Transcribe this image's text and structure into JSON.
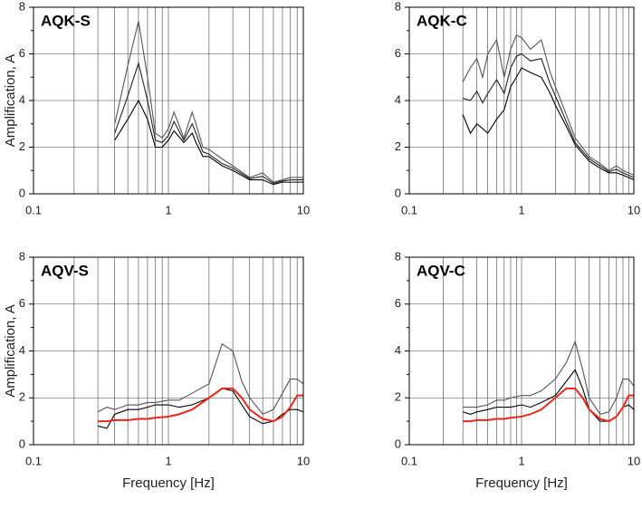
{
  "chart_data": [
    {
      "type": "line",
      "title": "AQK-S",
      "y_label": "Amplification, A",
      "log_x": true,
      "grid": true,
      "xlim": [
        0.1,
        10
      ],
      "xticks": [
        0.1,
        1,
        10
      ],
      "ylim": [
        0,
        8
      ],
      "yticks": [
        0,
        2,
        4,
        6,
        8
      ],
      "x": [
        0.4,
        0.5,
        0.6,
        0.7,
        0.8,
        0.9,
        1,
        1.1,
        1.3,
        1.5,
        1.6,
        1.8,
        2,
        2.5,
        3,
        4,
        5,
        6,
        7,
        8,
        10
      ],
      "series": [
        {
          "color": "#555555",
          "values": [
            3.0,
            5.5,
            7.4,
            5.0,
            2.6,
            2.4,
            2.8,
            3.5,
            2.4,
            3.5,
            3.0,
            2.0,
            1.9,
            1.5,
            1.2,
            0.7,
            0.9,
            0.5,
            0.6,
            0.7,
            0.7
          ]
        },
        {
          "color": "#222222",
          "values": [
            2.6,
            4.2,
            5.6,
            4.0,
            2.3,
            2.2,
            2.5,
            3.1,
            2.3,
            3.0,
            2.6,
            1.8,
            1.7,
            1.3,
            1.1,
            0.65,
            0.75,
            0.45,
            0.55,
            0.6,
            0.6
          ]
        },
        {
          "color": "#000000",
          "values": [
            2.3,
            3.2,
            4.0,
            3.2,
            2.0,
            2.0,
            2.3,
            2.7,
            2.2,
            2.6,
            2.2,
            1.6,
            1.6,
            1.2,
            1.0,
            0.6,
            0.6,
            0.4,
            0.5,
            0.5,
            0.5
          ]
        }
      ]
    },
    {
      "type": "line",
      "title": "AQK-C",
      "log_x": true,
      "grid": true,
      "xlim": [
        0.1,
        10
      ],
      "xticks": [
        0.1,
        1,
        10
      ],
      "ylim": [
        0,
        8
      ],
      "yticks": [
        0,
        2,
        4,
        6,
        8
      ],
      "x": [
        0.3,
        0.35,
        0.4,
        0.45,
        0.5,
        0.6,
        0.7,
        0.8,
        0.9,
        1,
        1.2,
        1.5,
        1.8,
        2,
        2.5,
        3,
        4,
        5,
        6,
        7,
        8,
        10
      ],
      "series": [
        {
          "color": "#555555",
          "values": [
            4.8,
            5.4,
            5.8,
            5.0,
            6.0,
            6.6,
            5.0,
            6.2,
            6.8,
            6.7,
            6.2,
            6.6,
            5.2,
            4.6,
            3.4,
            2.4,
            1.6,
            1.3,
            1.0,
            1.2,
            1.0,
            0.8
          ]
        },
        {
          "color": "#222222",
          "values": [
            4.1,
            4.0,
            4.4,
            3.9,
            4.3,
            4.9,
            4.3,
            5.4,
            5.9,
            6.0,
            5.7,
            5.8,
            4.7,
            4.2,
            3.1,
            2.2,
            1.5,
            1.2,
            0.95,
            1.05,
            0.9,
            0.7
          ]
        },
        {
          "color": "#000000",
          "values": [
            3.4,
            2.6,
            3.0,
            2.8,
            2.6,
            3.2,
            3.6,
            4.6,
            5.0,
            5.4,
            5.2,
            5.0,
            4.3,
            3.8,
            2.9,
            2.1,
            1.4,
            1.1,
            0.9,
            0.9,
            0.8,
            0.6
          ]
        }
      ]
    },
    {
      "type": "line",
      "title": "AQV-S",
      "y_label": "Amplification, A",
      "x_label": "Frequency [Hz]",
      "log_x": true,
      "grid": true,
      "xlim": [
        0.1,
        10
      ],
      "xticks": [
        0.1,
        1,
        10
      ],
      "ylim": [
        0,
        8
      ],
      "yticks": [
        0,
        2,
        4,
        6,
        8
      ],
      "x": [
        0.3,
        0.35,
        0.4,
        0.5,
        0.6,
        0.7,
        0.8,
        1,
        1.2,
        1.5,
        2,
        2.5,
        3,
        3.5,
        4,
        5,
        6,
        7,
        8,
        9,
        10
      ],
      "series": [
        {
          "color": "#555555",
          "values": [
            1.4,
            1.6,
            1.5,
            1.7,
            1.7,
            1.8,
            1.8,
            1.9,
            1.9,
            2.2,
            2.6,
            4.3,
            4.0,
            2.7,
            2.0,
            1.3,
            1.5,
            2.2,
            2.8,
            2.8,
            2.6
          ]
        },
        {
          "color": "#000000",
          "values": [
            0.8,
            0.7,
            1.3,
            1.5,
            1.5,
            1.6,
            1.7,
            1.7,
            1.6,
            1.7,
            2.0,
            2.4,
            2.3,
            1.7,
            1.2,
            0.9,
            1.0,
            1.3,
            1.5,
            1.5,
            1.4
          ]
        },
        {
          "color": "#e8281e",
          "values": [
            1.0,
            1.0,
            1.05,
            1.05,
            1.1,
            1.1,
            1.15,
            1.2,
            1.3,
            1.5,
            2.0,
            2.4,
            2.4,
            2.0,
            1.5,
            1.1,
            1.0,
            1.2,
            1.6,
            2.1,
            2.1
          ]
        }
      ]
    },
    {
      "type": "line",
      "title": "AQV-C",
      "x_label": "Frequency [Hz]",
      "log_x": true,
      "grid": true,
      "xlim": [
        0.1,
        10
      ],
      "xticks": [
        0.1,
        1,
        10
      ],
      "ylim": [
        0,
        8
      ],
      "yticks": [
        0,
        2,
        4,
        6,
        8
      ],
      "x": [
        0.3,
        0.35,
        0.4,
        0.5,
        0.6,
        0.7,
        0.8,
        1,
        1.2,
        1.5,
        2,
        2.5,
        3,
        3.5,
        4,
        5,
        6,
        7,
        8,
        9,
        10
      ],
      "series": [
        {
          "color": "#555555",
          "values": [
            1.6,
            1.6,
            1.6,
            1.7,
            1.9,
            1.9,
            2.0,
            2.1,
            2.1,
            2.3,
            2.8,
            3.5,
            4.4,
            3.2,
            2.0,
            1.3,
            1.4,
            2.0,
            2.8,
            2.8,
            2.5
          ]
        },
        {
          "color": "#000000",
          "values": [
            1.4,
            1.3,
            1.4,
            1.5,
            1.6,
            1.6,
            1.6,
            1.7,
            1.6,
            1.8,
            2.1,
            2.7,
            3.2,
            2.4,
            1.5,
            1.0,
            1.0,
            1.2,
            1.6,
            1.7,
            1.5
          ]
        },
        {
          "color": "#e8281e",
          "values": [
            1.0,
            1.0,
            1.05,
            1.05,
            1.1,
            1.1,
            1.15,
            1.2,
            1.3,
            1.5,
            2.0,
            2.4,
            2.4,
            2.0,
            1.5,
            1.1,
            1.0,
            1.2,
            1.6,
            2.1,
            2.1
          ]
        }
      ]
    }
  ]
}
